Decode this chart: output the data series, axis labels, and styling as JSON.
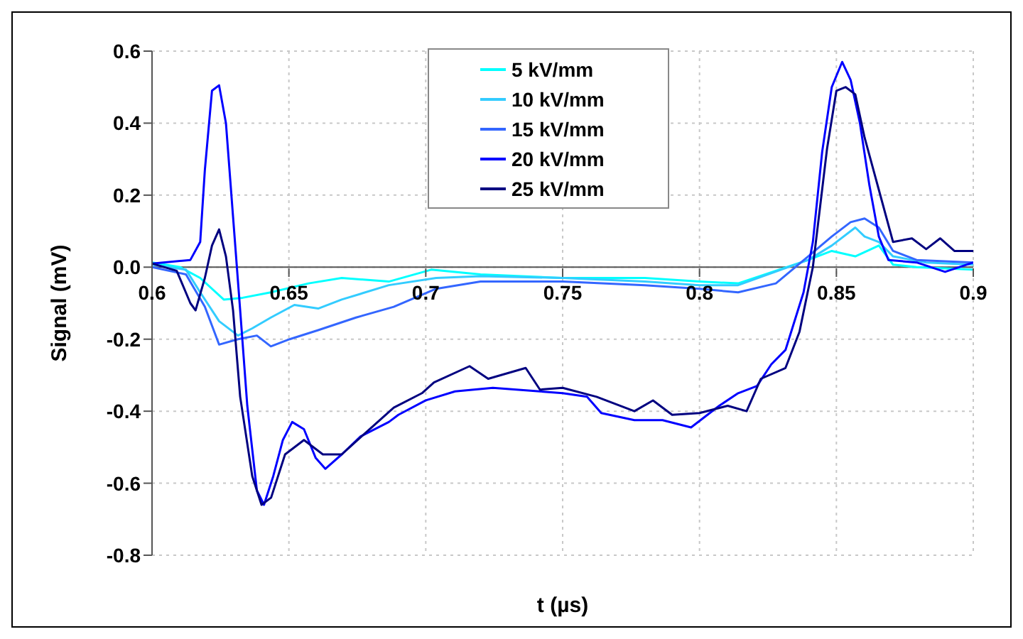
{
  "chart_data": {
    "type": "line",
    "xlabel": "t (µs)",
    "ylabel": "Signal (mV)",
    "xlim": [
      0.6,
      0.9
    ],
    "xticks": [
      0.6,
      0.65,
      0.7,
      0.75,
      0.8,
      0.85,
      0.9
    ],
    "ylim": [
      -0.8,
      0.6
    ],
    "yticks": [
      -0.8,
      -0.6,
      -0.4,
      -0.2,
      {
        "value": 0,
        "label": "0.0"
      },
      0.2,
      0.4,
      0.6
    ],
    "grid": true,
    "legend": "top",
    "marker": "none",
    "line_style": "solid",
    "series": [
      {
        "name": "5 kV/mm",
        "color": "#00ffff",
        "x": [
          0.6,
          0.6103,
          0.6176,
          0.6262,
          0.6331,
          0.6434,
          0.6572,
          0.6693,
          0.6865,
          0.702,
          0.72,
          0.75,
          0.78,
          0.8,
          0.8141,
          0.8397,
          0.8483,
          0.8569,
          0.8655,
          0.8707,
          0.8793,
          0.9
        ],
        "values": [
          0.013,
          0,
          -0.03,
          -0.09,
          -0.085,
          -0.07,
          -0.045,
          -0.03,
          -0.04,
          -0.007,
          -0.02,
          -0.03,
          -0.03,
          -0.04,
          -0.045,
          0.02,
          0.045,
          0.03,
          0.06,
          0.007,
          0,
          -0.007
        ]
      },
      {
        "name": "10 kV/mm",
        "color": "#33ccff",
        "x": [
          0.6,
          0.6124,
          0.6176,
          0.6245,
          0.6314,
          0.6366,
          0.6434,
          0.652,
          0.6607,
          0.6693,
          0.6865,
          0.7038,
          0.72,
          0.75,
          0.78,
          0.8,
          0.8141,
          0.8397,
          0.8483,
          0.8569,
          0.8603,
          0.8655,
          0.8707,
          0.8828,
          0.9
        ],
        "values": [
          0.007,
          -0.007,
          -0.07,
          -0.15,
          -0.19,
          -0.17,
          -0.14,
          -0.105,
          -0.115,
          -0.09,
          -0.05,
          -0.03,
          -0.025,
          -0.03,
          -0.04,
          -0.05,
          -0.05,
          0.02,
          0.06,
          0.11,
          0.085,
          0.07,
          0.03,
          0.013,
          0.007
        ]
      },
      {
        "name": "15 kV/mm",
        "color": "#3366ff",
        "x": [
          0.6,
          0.6124,
          0.6193,
          0.6245,
          0.6314,
          0.6383,
          0.6434,
          0.6503,
          0.6607,
          0.6745,
          0.6883,
          0.7038,
          0.72,
          0.75,
          0.78,
          0.8,
          0.8141,
          0.8279,
          0.8397,
          0.8483,
          0.8552,
          0.8603,
          0.8655,
          0.8707,
          0.8793,
          0.9
        ],
        "values": [
          0,
          -0.02,
          -0.11,
          -0.215,
          -0.2,
          -0.19,
          -0.22,
          -0.2,
          -0.175,
          -0.14,
          -0.11,
          -0.06,
          -0.04,
          -0.04,
          -0.05,
          -0.06,
          -0.07,
          -0.045,
          0.03,
          0.085,
          0.125,
          0.135,
          0.11,
          0.045,
          0.02,
          0.013
        ]
      },
      {
        "name": "20 kV/mm",
        "color": "#0000ff",
        "x": [
          0.6,
          0.614,
          0.6176,
          0.6193,
          0.6219,
          0.6245,
          0.627,
          0.6296,
          0.6322,
          0.6348,
          0.6383,
          0.6409,
          0.6443,
          0.6478,
          0.6512,
          0.6555,
          0.6598,
          0.6633,
          0.6693,
          0.6762,
          0.6865,
          0.69,
          0.7,
          0.7107,
          0.7245,
          0.7331,
          0.7417,
          0.75,
          0.7589,
          0.7641,
          0.7762,
          0.7865,
          0.7969,
          0.8072,
          0.8141,
          0.821,
          0.8262,
          0.8314,
          0.838,
          0.8414,
          0.8448,
          0.8483,
          0.8521,
          0.8552,
          0.8586,
          0.862,
          0.8655,
          0.869,
          0.8793,
          0.8897,
          0.9
        ],
        "values": [
          0.01,
          0.02,
          0.07,
          0.27,
          0.49,
          0.505,
          0.4,
          0.14,
          -0.12,
          -0.385,
          -0.62,
          -0.66,
          -0.58,
          -0.48,
          -0.43,
          -0.45,
          -0.53,
          -0.56,
          -0.52,
          -0.47,
          -0.43,
          -0.41,
          -0.37,
          -0.345,
          -0.335,
          -0.34,
          -0.345,
          -0.35,
          -0.36,
          -0.405,
          -0.425,
          -0.425,
          -0.445,
          -0.385,
          -0.35,
          -0.33,
          -0.27,
          -0.23,
          -0.07,
          0.07,
          0.32,
          0.5,
          0.57,
          0.52,
          0.4,
          0.23,
          0.085,
          0.02,
          0.013,
          -0.013,
          0.013
        ]
      },
      {
        "name": "25 kV/mm",
        "color": "#000080",
        "x": [
          0.6,
          0.609,
          0.614,
          0.6159,
          0.6193,
          0.6219,
          0.6245,
          0.627,
          0.6296,
          0.6322,
          0.6366,
          0.64,
          0.6435,
          0.6486,
          0.6555,
          0.6624,
          0.6693,
          0.678,
          0.6883,
          0.6986,
          0.703,
          0.716,
          0.7228,
          0.7365,
          0.7417,
          0.75,
          0.7624,
          0.7762,
          0.783,
          0.79,
          0.8,
          0.8103,
          0.8172,
          0.8224,
          0.8314,
          0.8365,
          0.8414,
          0.8466,
          0.85,
          0.8534,
          0.8569,
          0.8603,
          0.8655,
          0.8707,
          0.8776,
          0.8828,
          0.8879,
          0.8931,
          0.9
        ],
        "values": [
          0.01,
          -0.01,
          -0.1,
          -0.12,
          -0.03,
          0.06,
          0.105,
          0.03,
          -0.12,
          -0.36,
          -0.58,
          -0.66,
          -0.64,
          -0.52,
          -0.48,
          -0.52,
          -0.52,
          -0.46,
          -0.39,
          -0.35,
          -0.32,
          -0.275,
          -0.31,
          -0.28,
          -0.34,
          -0.335,
          -0.36,
          -0.4,
          -0.37,
          -0.41,
          -0.405,
          -0.385,
          -0.4,
          -0.31,
          -0.28,
          -0.18,
          0,
          0.33,
          0.49,
          0.5,
          0.48,
          0.36,
          0.215,
          0.07,
          0.08,
          0.05,
          0.08,
          0.045,
          0.045
        ]
      }
    ]
  }
}
